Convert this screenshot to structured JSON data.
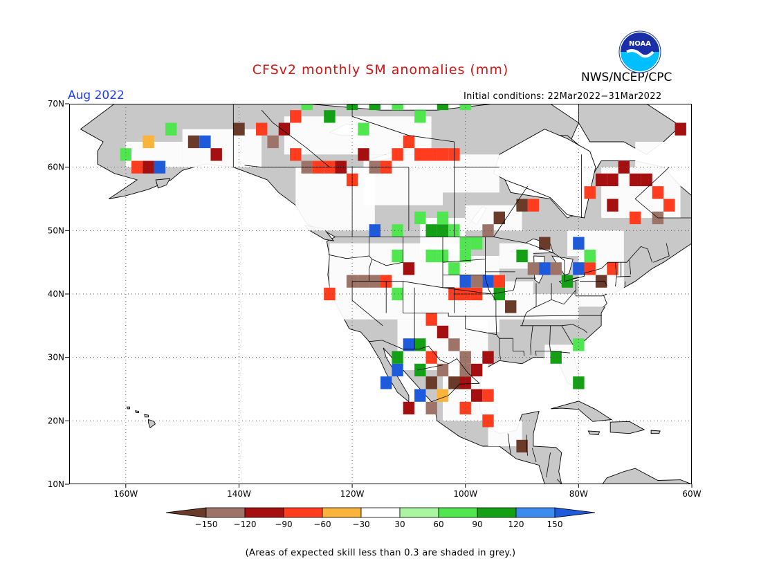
{
  "title": "CFSv2 monthly SM anomalies (mm)",
  "agency": "NWS/NCEP/CPC",
  "logo_text": "NOAA",
  "valid_month": "Aug 2022",
  "initial_conditions": "Initial conditions: 22Mar2022−31Mar2022",
  "footnote": "(Areas of expected skill less than 0.3 are shaded in grey.)",
  "colors": {
    "ocean": "#ffffff",
    "land_low_skill": "#c8c8c8",
    "frame": "#000000",
    "title": "#d21414",
    "month": "#1e3cff"
  },
  "map": {
    "lon_range": [
      -170,
      -60
    ],
    "lat_range": [
      10,
      70
    ],
    "lat_labels": [
      "70N",
      "60N",
      "50N",
      "40N",
      "30N",
      "20N",
      "10N"
    ],
    "lat_values": [
      70,
      60,
      50,
      40,
      30,
      20,
      10
    ],
    "lon_labels": [
      "160W",
      "140W",
      "120W",
      "100W",
      "80W",
      "60W"
    ],
    "lon_values": [
      -160,
      -140,
      -120,
      -100,
      -80,
      -60
    ],
    "cell_size_deg": 2
  },
  "colorbar": {
    "ticks": [
      "−150",
      "−120",
      "−90",
      "−60",
      "−30",
      "30",
      "60",
      "90",
      "120",
      "150"
    ],
    "colors": [
      "#6b3b2a",
      "#9e7468",
      "#a50f0f",
      "#ff3c1e",
      "#fab43c",
      "#ffffff",
      "#aaf5a0",
      "#50e650",
      "#14a014",
      "#3c8cf0",
      "#1e5adc"
    ]
  },
  "anomaly_cells": [
    {
      "lon": -160,
      "lat": 62,
      "v": 60
    },
    {
      "lon": -156,
      "lat": 64,
      "v": -30
    },
    {
      "lon": -152,
      "lat": 66,
      "v": 60
    },
    {
      "lon": -148,
      "lat": 64,
      "v": -150
    },
    {
      "lon": -146,
      "lat": 64,
      "v": 150
    },
    {
      "lon": -144,
      "lat": 62,
      "v": -90
    },
    {
      "lon": -158,
      "lat": 60,
      "v": -60
    },
    {
      "lon": -156,
      "lat": 60,
      "v": -90
    },
    {
      "lon": -154,
      "lat": 60,
      "v": 150
    },
    {
      "lon": -140,
      "lat": 66,
      "v": -150
    },
    {
      "lon": -136,
      "lat": 66,
      "v": -60
    },
    {
      "lon": -134,
      "lat": 64,
      "v": -120
    },
    {
      "lon": -132,
      "lat": 66,
      "v": -90
    },
    {
      "lon": -130,
      "lat": 62,
      "v": -60
    },
    {
      "lon": -128,
      "lat": 60,
      "v": -120
    },
    {
      "lon": -126,
      "lat": 60,
      "v": -60
    },
    {
      "lon": -124,
      "lat": 60,
      "v": -60
    },
    {
      "lon": -122,
      "lat": 60,
      "v": -90
    },
    {
      "lon": -120,
      "lat": 58,
      "v": -60
    },
    {
      "lon": -118,
      "lat": 62,
      "v": -90
    },
    {
      "lon": -116,
      "lat": 60,
      "v": -120
    },
    {
      "lon": -114,
      "lat": 60,
      "v": -60
    },
    {
      "lon": -112,
      "lat": 62,
      "v": -60
    },
    {
      "lon": -108,
      "lat": 62,
      "v": -60
    },
    {
      "lon": -106,
      "lat": 62,
      "v": -60
    },
    {
      "lon": -104,
      "lat": 62,
      "v": -60
    },
    {
      "lon": -102,
      "lat": 62,
      "v": -60
    },
    {
      "lon": -110,
      "lat": 64,
      "v": -60
    },
    {
      "lon": -124,
      "lat": 68,
      "v": 90
    },
    {
      "lon": -120,
      "lat": 70,
      "v": 90
    },
    {
      "lon": -116,
      "lat": 70,
      "v": 90
    },
    {
      "lon": -112,
      "lat": 70,
      "v": 60
    },
    {
      "lon": -128,
      "lat": 70,
      "v": 60
    },
    {
      "lon": -118,
      "lat": 66,
      "v": 60
    },
    {
      "lon": -130,
      "lat": 68,
      "v": -60
    },
    {
      "lon": -108,
      "lat": 68,
      "v": 60
    },
    {
      "lon": -104,
      "lat": 70,
      "v": 90
    },
    {
      "lon": -100,
      "lat": 70,
      "v": 60
    },
    {
      "lon": -116,
      "lat": 50,
      "v": 150
    },
    {
      "lon": -112,
      "lat": 50,
      "v": 60
    },
    {
      "lon": -106,
      "lat": 50,
      "v": 90
    },
    {
      "lon": -104,
      "lat": 50,
      "v": 90
    },
    {
      "lon": -102,
      "lat": 50,
      "v": 60
    },
    {
      "lon": -100,
      "lat": 48,
      "v": 60
    },
    {
      "lon": -98,
      "lat": 48,
      "v": 60
    },
    {
      "lon": -104,
      "lat": 52,
      "v": 60
    },
    {
      "lon": -108,
      "lat": 52,
      "v": 60
    },
    {
      "lon": -96,
      "lat": 50,
      "v": -120
    },
    {
      "lon": -94,
      "lat": 52,
      "v": -150
    },
    {
      "lon": -90,
      "lat": 54,
      "v": -150
    },
    {
      "lon": -88,
      "lat": 54,
      "v": -60
    },
    {
      "lon": -112,
      "lat": 46,
      "v": 60
    },
    {
      "lon": -110,
      "lat": 44,
      "v": -90
    },
    {
      "lon": -106,
      "lat": 46,
      "v": 60
    },
    {
      "lon": -104,
      "lat": 46,
      "v": 60
    },
    {
      "lon": -100,
      "lat": 46,
      "v": 60
    },
    {
      "lon": -102,
      "lat": 44,
      "v": 60
    },
    {
      "lon": -120,
      "lat": 42,
      "v": -120
    },
    {
      "lon": -118,
      "lat": 42,
      "v": -120
    },
    {
      "lon": -116,
      "lat": 42,
      "v": -120
    },
    {
      "lon": -114,
      "lat": 42,
      "v": -60
    },
    {
      "lon": -124,
      "lat": 40,
      "v": -60
    },
    {
      "lon": -112,
      "lat": 40,
      "v": 60
    },
    {
      "lon": -102,
      "lat": 40,
      "v": -60
    },
    {
      "lon": -100,
      "lat": 40,
      "v": -60
    },
    {
      "lon": -98,
      "lat": 40,
      "v": -60
    },
    {
      "lon": -100,
      "lat": 42,
      "v": 150
    },
    {
      "lon": -98,
      "lat": 42,
      "v": -120
    },
    {
      "lon": -96,
      "lat": 42,
      "v": 150
    },
    {
      "lon": -94,
      "lat": 42,
      "v": -60
    },
    {
      "lon": -94,
      "lat": 40,
      "v": 90
    },
    {
      "lon": -88,
      "lat": 44,
      "v": -120
    },
    {
      "lon": -86,
      "lat": 44,
      "v": 150
    },
    {
      "lon": -84,
      "lat": 44,
      "v": -120
    },
    {
      "lon": -82,
      "lat": 42,
      "v": 90
    },
    {
      "lon": -80,
      "lat": 44,
      "v": 150
    },
    {
      "lon": -78,
      "lat": 44,
      "v": -60
    },
    {
      "lon": -76,
      "lat": 42,
      "v": -150
    },
    {
      "lon": -90,
      "lat": 46,
      "v": 90
    },
    {
      "lon": -86,
      "lat": 48,
      "v": -150
    },
    {
      "lon": -80,
      "lat": 48,
      "v": 150
    },
    {
      "lon": -78,
      "lat": 46,
      "v": 60
    },
    {
      "lon": -74,
      "lat": 44,
      "v": -60
    },
    {
      "lon": -76,
      "lat": 58,
      "v": -90
    },
    {
      "lon": -74,
      "lat": 58,
      "v": -90
    },
    {
      "lon": -72,
      "lat": 60,
      "v": -90
    },
    {
      "lon": -70,
      "lat": 58,
      "v": -90
    },
    {
      "lon": -68,
      "lat": 58,
      "v": -90
    },
    {
      "lon": -66,
      "lat": 56,
      "v": -60
    },
    {
      "lon": -74,
      "lat": 54,
      "v": -90
    },
    {
      "lon": -78,
      "lat": 56,
      "v": -60
    },
    {
      "lon": -64,
      "lat": 54,
      "v": -60
    },
    {
      "lon": -70,
      "lat": 52,
      "v": -60
    },
    {
      "lon": -66,
      "lat": 52,
      "v": -120
    },
    {
      "lon": -62,
      "lat": 66,
      "v": -90
    },
    {
      "lon": -106,
      "lat": 36,
      "v": -60
    },
    {
      "lon": -104,
      "lat": 34,
      "v": -90
    },
    {
      "lon": -102,
      "lat": 32,
      "v": -120
    },
    {
      "lon": -100,
      "lat": 30,
      "v": -120
    },
    {
      "lon": -98,
      "lat": 28,
      "v": -90
    },
    {
      "lon": -96,
      "lat": 30,
      "v": -90
    },
    {
      "lon": -100,
      "lat": 28,
      "v": -120
    },
    {
      "lon": -102,
      "lat": 26,
      "v": -150
    },
    {
      "lon": -100,
      "lat": 26,
      "v": -90
    },
    {
      "lon": -98,
      "lat": 24,
      "v": -90
    },
    {
      "lon": -96,
      "lat": 24,
      "v": -60
    },
    {
      "lon": -100,
      "lat": 22,
      "v": -60
    },
    {
      "lon": -104,
      "lat": 28,
      "v": -120
    },
    {
      "lon": -106,
      "lat": 30,
      "v": -60
    },
    {
      "lon": -108,
      "lat": 32,
      "v": 90
    },
    {
      "lon": -110,
      "lat": 32,
      "v": 150
    },
    {
      "lon": -112,
      "lat": 30,
      "v": 90
    },
    {
      "lon": -112,
      "lat": 28,
      "v": 150
    },
    {
      "lon": -114,
      "lat": 26,
      "v": 150
    },
    {
      "lon": -108,
      "lat": 28,
      "v": 90
    },
    {
      "lon": -106,
      "lat": 26,
      "v": -150
    },
    {
      "lon": -108,
      "lat": 24,
      "v": 150
    },
    {
      "lon": -110,
      "lat": 22,
      "v": -90
    },
    {
      "lon": -106,
      "lat": 22,
      "v": -120
    },
    {
      "lon": -104,
      "lat": 24,
      "v": -30
    },
    {
      "lon": -96,
      "lat": 20,
      "v": -60
    },
    {
      "lon": -90,
      "lat": 16,
      "v": -150
    },
    {
      "lon": -80,
      "lat": 26,
      "v": 90
    },
    {
      "lon": -80,
      "lat": 32,
      "v": 60
    },
    {
      "lon": -84,
      "lat": 30,
      "v": 90
    },
    {
      "lon": -92,
      "lat": 38,
      "v": -150
    }
  ],
  "low_skill_white_regions": []
}
